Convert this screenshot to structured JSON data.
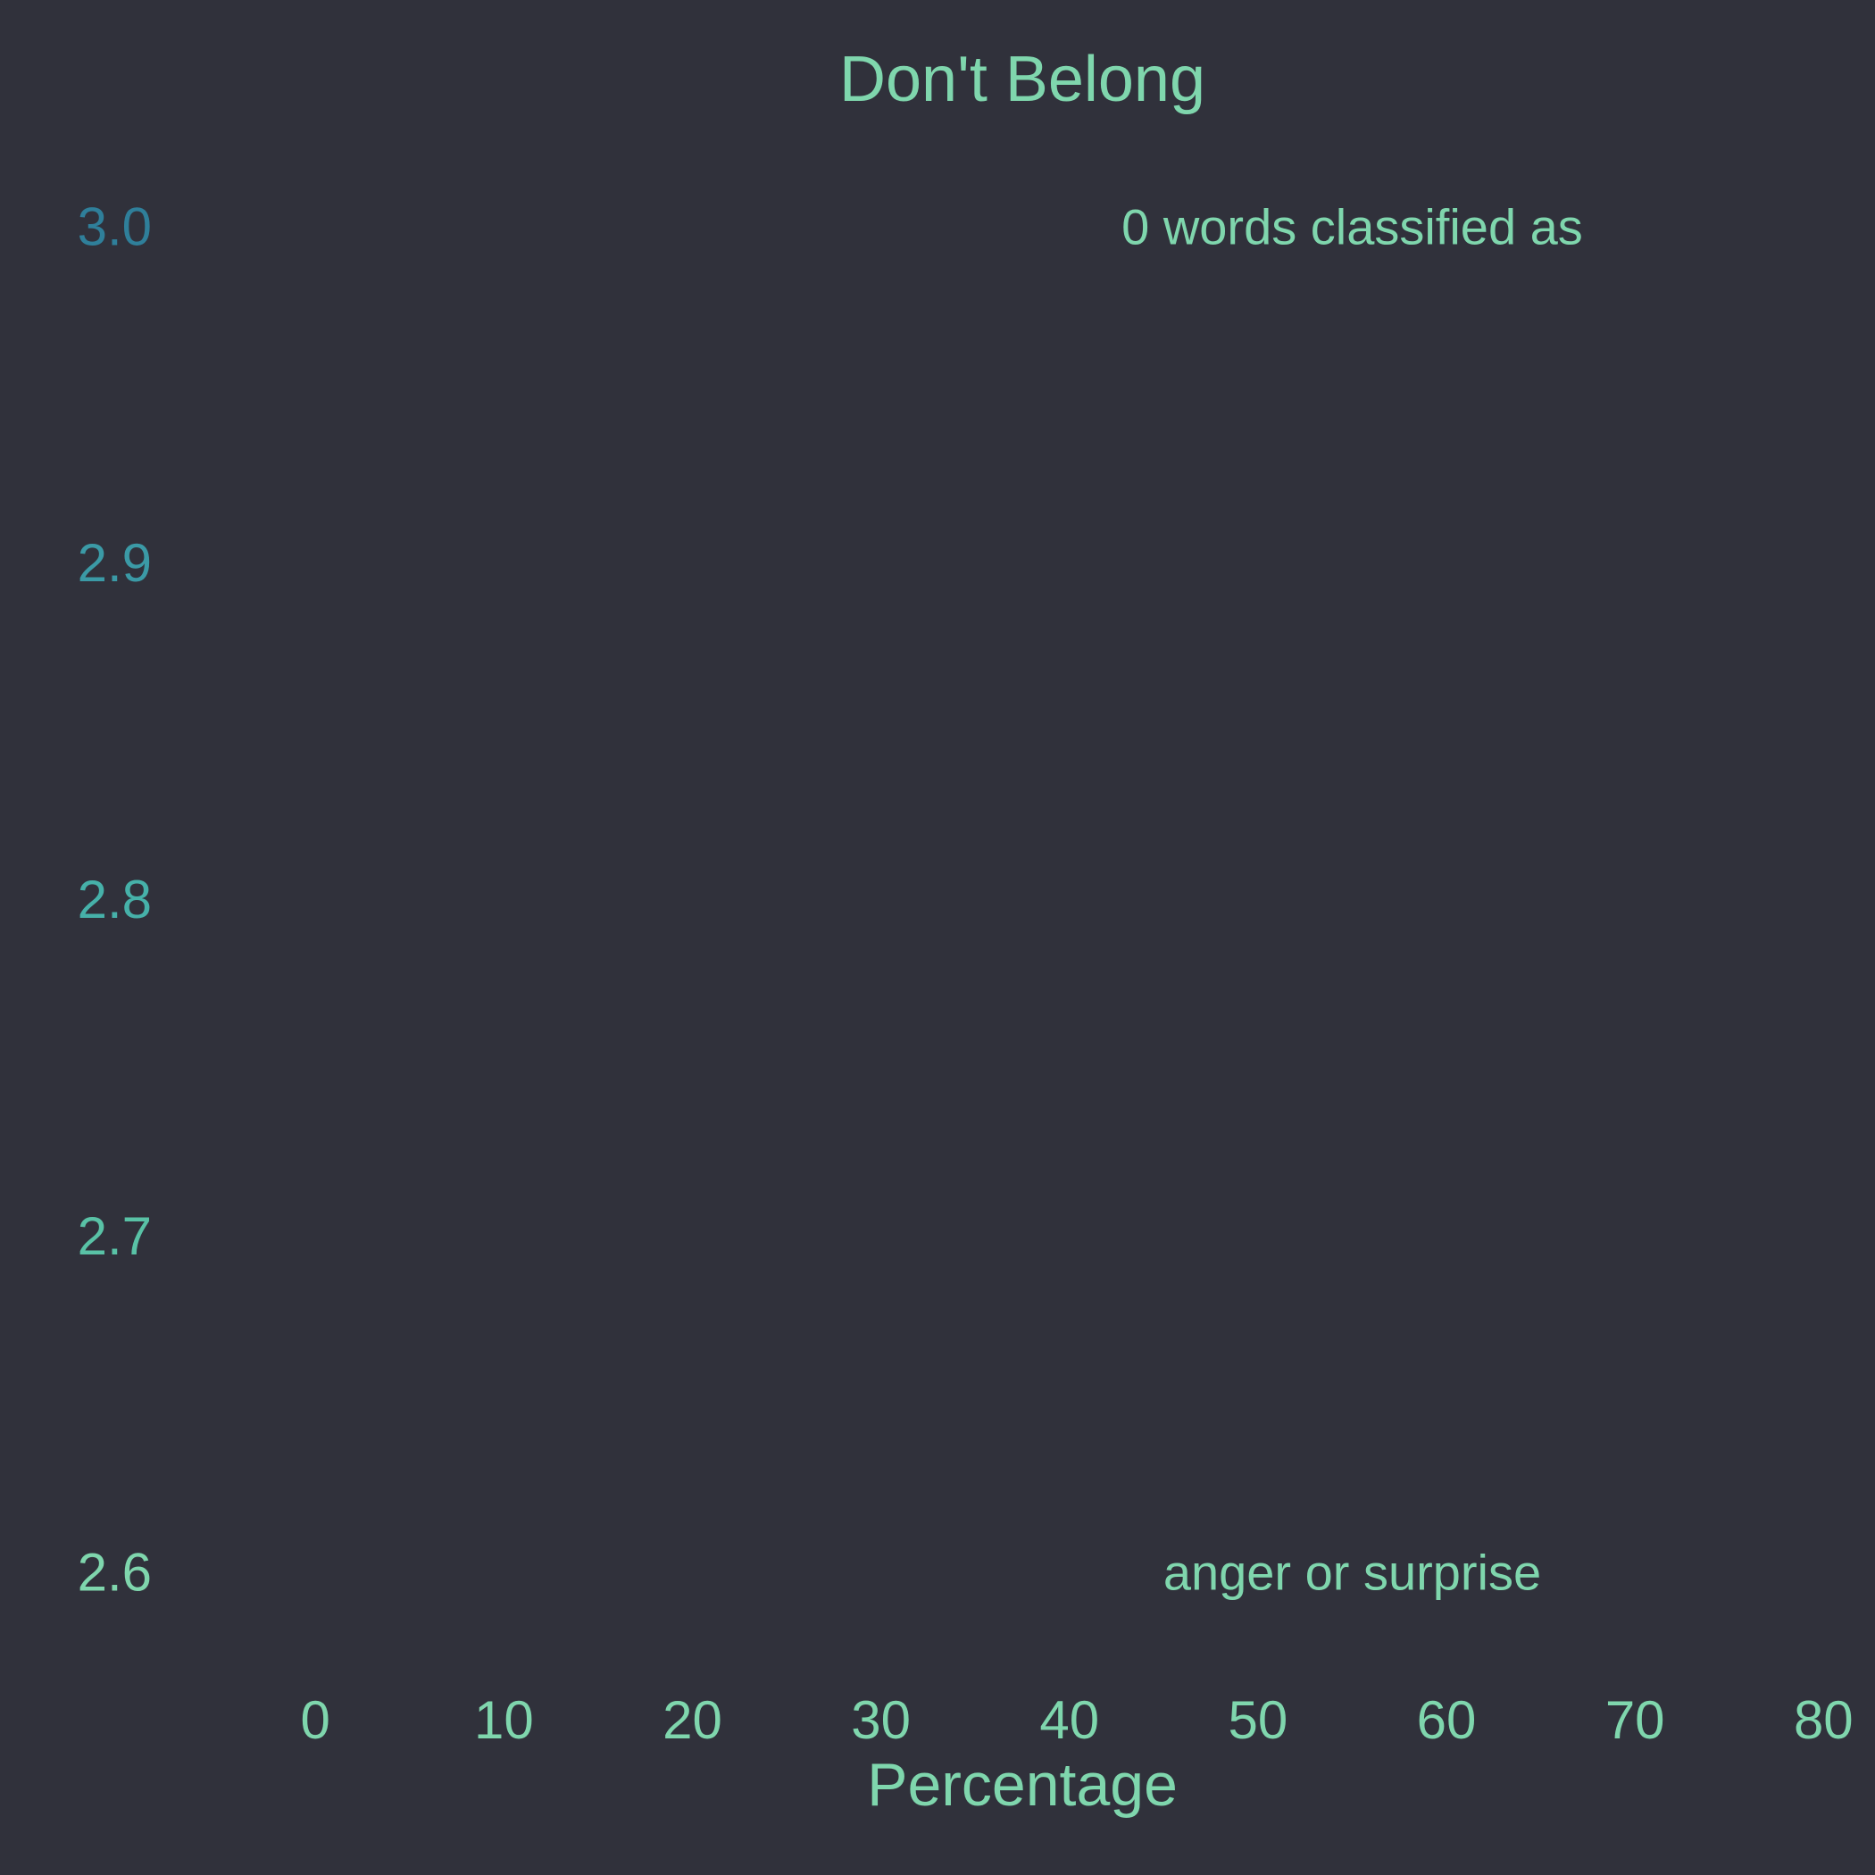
{
  "chart_data": {
    "type": "bar",
    "title": "Don't Belong",
    "xlabel": "Percentage",
    "ylabel": "",
    "orientation": "horizontal",
    "categories": [],
    "values": [],
    "xlim": [
      -8.3,
      83.3
    ],
    "ylim": [
      2.58,
      3.02
    ],
    "x_ticks": [
      "0",
      "10",
      "20",
      "30",
      "40",
      "50",
      "60",
      "70",
      "80"
    ],
    "y_ticks": [
      "3.0",
      "2.9",
      "2.8",
      "2.7",
      "2.6"
    ],
    "annotations": [
      {
        "text": "0 words classified as",
        "x": 55,
        "y": 3.0
      },
      {
        "text": "anger or surprise",
        "x": 55,
        "y": 2.6
      }
    ],
    "grid": false,
    "legend": "none",
    "colors": {
      "background": "#30313b",
      "title": "#7fd6ad",
      "x_tick": "#7fd6ad",
      "annotation": "#7fd6ad",
      "y_tick_gradient": [
        "#2f7f9a",
        "#3b9aa6",
        "#46b1a9",
        "#59c2a6",
        "#7fd6ad"
      ]
    }
  }
}
